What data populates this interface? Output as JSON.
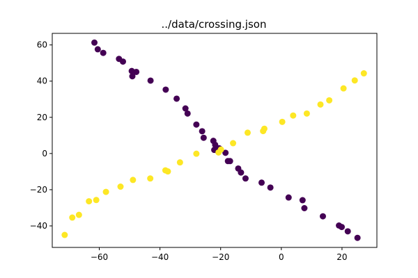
{
  "chart_data": {
    "type": "scatter",
    "title": "../data/crossing.json",
    "xlabel": "",
    "ylabel": "",
    "xlim": [
      -75.5,
      31.5
    ],
    "ylim": [
      -51.9,
      66.4
    ],
    "xticks": [
      -60,
      -40,
      -20,
      0,
      20
    ],
    "yticks": [
      -40,
      -20,
      0,
      20,
      40,
      60
    ],
    "grid": false,
    "colors": {
      "series_a": "#440154",
      "series_b": "#fde725",
      "axes": "#000000",
      "background": "#ffffff"
    },
    "series": [
      {
        "color": "#440154",
        "points": [
          [
            -61.6,
            61.3
          ],
          [
            -60.5,
            57.6
          ],
          [
            -58.7,
            55.6
          ],
          [
            -53.5,
            52.3
          ],
          [
            -52.2,
            50.8
          ],
          [
            -49.3,
            45.6
          ],
          [
            -47.8,
            45.1
          ],
          [
            -49.1,
            42.7
          ],
          [
            -43.1,
            40.3
          ],
          [
            -38.1,
            35.3
          ],
          [
            -34.5,
            30.3
          ],
          [
            -31.6,
            24.9
          ],
          [
            -30.9,
            22.1
          ],
          [
            -28.0,
            16.0
          ],
          [
            -26.1,
            12.3
          ],
          [
            -25.6,
            8.7
          ],
          [
            -22.4,
            7.0
          ],
          [
            -21.8,
            4.8
          ],
          [
            -20.5,
            2.9
          ],
          [
            -22.1,
            2.0
          ],
          [
            -21.2,
            1.7
          ],
          [
            -18.4,
            0.4
          ],
          [
            -17.6,
            -4.2
          ],
          [
            -16.9,
            -4.2
          ],
          [
            -14.2,
            -8.3
          ],
          [
            -13.3,
            -10.5
          ],
          [
            -11.8,
            -13.8
          ],
          [
            -6.5,
            -16.1
          ],
          [
            -3.6,
            -18.8
          ],
          [
            2.4,
            -24.3
          ],
          [
            7.0,
            -25.8
          ],
          [
            7.6,
            -30.2
          ],
          [
            13.7,
            -34.7
          ],
          [
            19.0,
            -39.8
          ],
          [
            19.9,
            -40.6
          ],
          [
            21.9,
            -43.0
          ],
          [
            25.1,
            -46.6
          ]
        ]
      },
      {
        "color": "#fde725",
        "points": [
          [
            -71.4,
            -45.0
          ],
          [
            -68.9,
            -35.4
          ],
          [
            -66.7,
            -33.9
          ],
          [
            -63.4,
            -26.4
          ],
          [
            -61.0,
            -25.7
          ],
          [
            -57.8,
            -21.2
          ],
          [
            -53.0,
            -18.3
          ],
          [
            -48.9,
            -14.6
          ],
          [
            -43.2,
            -13.8
          ],
          [
            -38.2,
            -9.3
          ],
          [
            -37.4,
            -9.9
          ],
          [
            -33.4,
            -4.9
          ],
          [
            -28.0,
            -0.1
          ],
          [
            -20.7,
            0.6
          ],
          [
            -19.9,
            2.2
          ],
          [
            -15.9,
            5.7
          ],
          [
            -11.1,
            11.5
          ],
          [
            -6.0,
            12.4
          ],
          [
            -5.6,
            13.7
          ],
          [
            0.3,
            17.5
          ],
          [
            3.9,
            21.0
          ],
          [
            8.4,
            22.1
          ],
          [
            12.9,
            27.1
          ],
          [
            15.8,
            29.4
          ],
          [
            20.5,
            36.0
          ],
          [
            24.2,
            40.4
          ],
          [
            27.2,
            44.3
          ]
        ]
      }
    ]
  }
}
